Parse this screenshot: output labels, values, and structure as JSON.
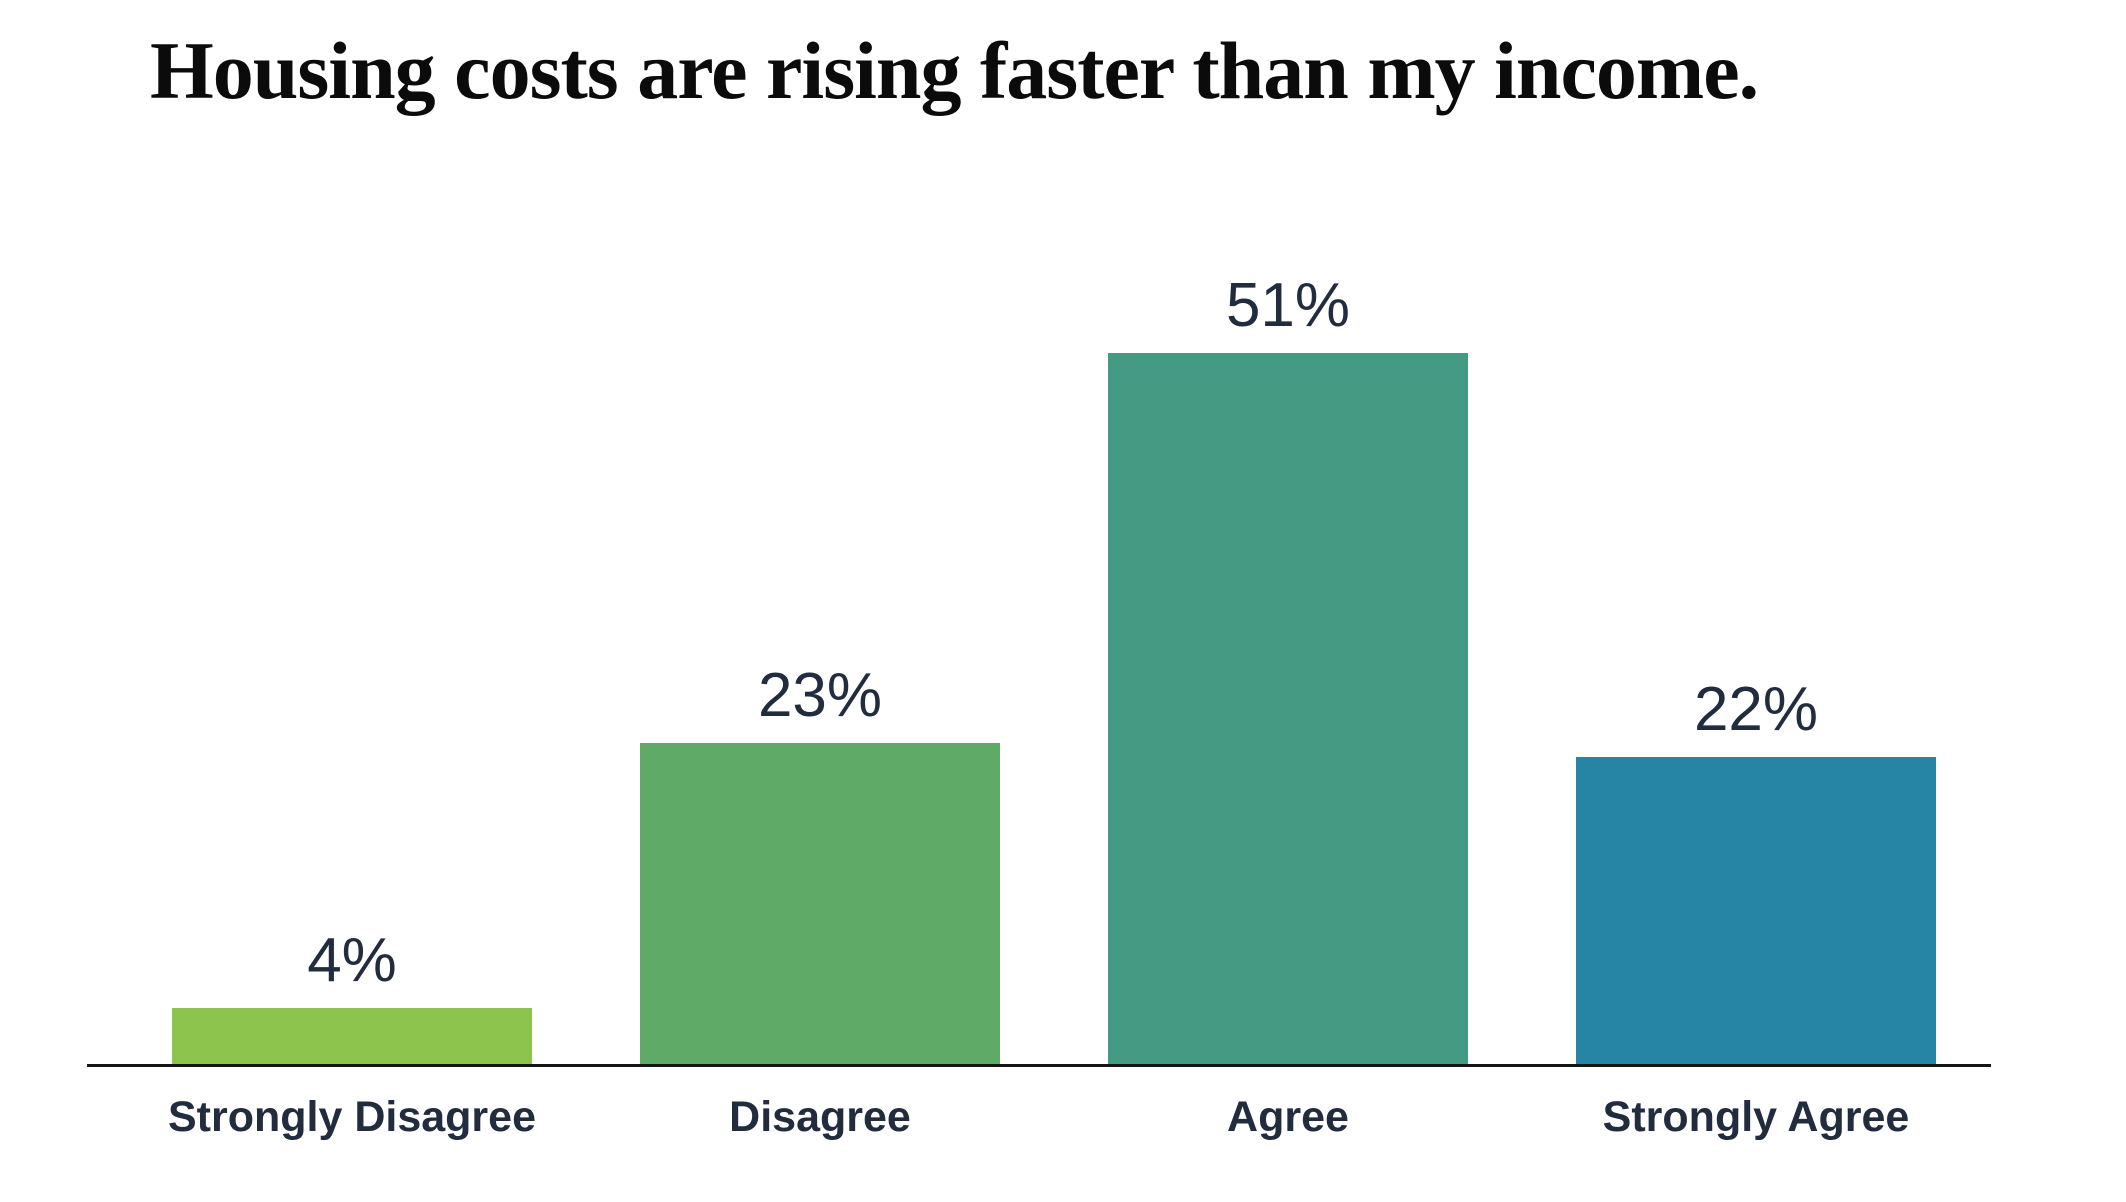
{
  "page": {
    "background": "#ffffff",
    "text_color": "#222c3f",
    "title_color": "#0b0b0b",
    "axis_color": "#161616"
  },
  "chart_data": {
    "type": "bar",
    "title": "Housing costs are rising faster than my income.",
    "categories": [
      "Strongly Disagree",
      "Disagree",
      "Agree",
      "Strongly Agree"
    ],
    "values": [
      4,
      23,
      51,
      22
    ],
    "value_labels": [
      "4%",
      "23%",
      "51%",
      "22%"
    ],
    "colors": [
      "#8cc44d",
      "#60aa67",
      "#449a83",
      "#2684a4"
    ],
    "xlabel": "",
    "ylabel": "",
    "ylim": [
      0,
      60
    ],
    "grid": false,
    "legend": false,
    "value_label_position": "above-bar",
    "baseline": true
  }
}
